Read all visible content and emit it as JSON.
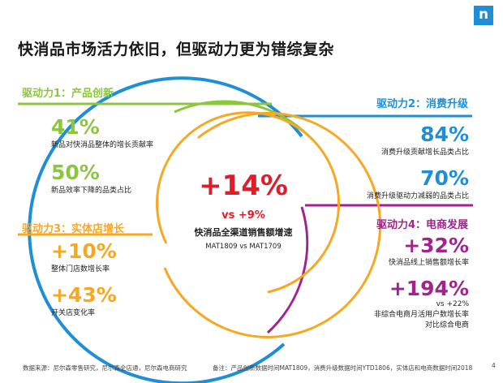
{
  "title": "快消品市场活力依旧，但驱动力更为错综复杂",
  "logo": "n",
  "colors": {
    "green": "#8cc63f",
    "blue": "#1e8ed6",
    "orange": "#f7a823",
    "purple": "#a3238e",
    "red": "#e01e2a"
  },
  "driver1": {
    "label": "驱动力1：产品创新",
    "items": [
      {
        "value": "41%",
        "desc": "新品对快消品整体的增长贡献率"
      },
      {
        "value": "50%",
        "desc": "新品效率下降的品类占比"
      }
    ]
  },
  "driver2": {
    "label": "驱动力2：消费升级",
    "items": [
      {
        "value": "84%",
        "desc": "消费升级贡献增长品类占比"
      },
      {
        "value": "70%",
        "desc": "消费升级驱动力减弱的品类占比"
      }
    ]
  },
  "driver3": {
    "label": "驱动力3：实体店增长",
    "items": [
      {
        "value": "+10%",
        "desc": "整体门店数增长率"
      },
      {
        "value": "+43%",
        "desc": "开关店变化率"
      }
    ]
  },
  "driver4": {
    "label": "驱动力4：电商发展",
    "items": [
      {
        "value": "+32%",
        "desc": "快消品线上销售额增长率"
      },
      {
        "value": "+194%",
        "desc": "vs +22%",
        "desc2": "非综合电商月活用户数增长率",
        "desc3": "对比综合电商"
      }
    ]
  },
  "center": {
    "main": "+14%",
    "sub": "vs +9%",
    "label": "快消品全渠道销售额增速",
    "period": "MAT1809 vs MAT1709"
  },
  "footer": {
    "source": "数据来源：尼尔森零售研究，尼尔森全店通，尼尔森电商研究",
    "note": "备注：产品创新数据时间MAT1809，消费升级数据时间YTD1806，实体店和电商数据时间2018",
    "page": "4"
  }
}
